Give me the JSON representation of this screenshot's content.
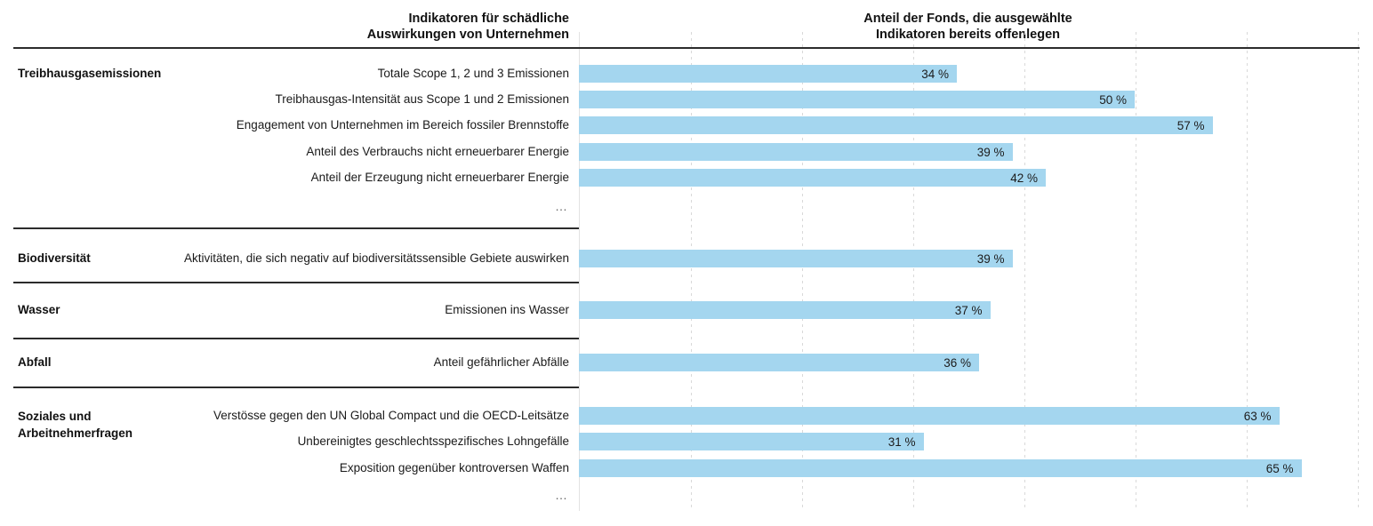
{
  "header": {
    "left_title_line1": "Indikatoren für schädliche",
    "left_title_line2": "Auswirkungen von Unternehmen",
    "right_title_line1": "Anteil der Fonds, die ausgewählte",
    "right_title_line2": "Indikatoren bereits offenlegen"
  },
  "colors": {
    "bar": "#a4d6ef",
    "rule": "#2b2b2b",
    "grid": "#d9d9d9",
    "text": "#1a1a1a",
    "muted": "#666666"
  },
  "chart_data": {
    "type": "bar",
    "orientation": "horizontal",
    "unit": "%",
    "xlim": [
      0,
      70
    ],
    "gridline_step": 10,
    "grid": true,
    "ellipsis_label": "…",
    "sections": [
      {
        "category": "Treibhausgasemissionen",
        "truncated": true,
        "rows": [
          {
            "label": "Totale Scope 1, 2 und 3 Emissionen",
            "value": 34,
            "value_label": "34 %"
          },
          {
            "label": "Treibhausgas-Intensität aus Scope 1 und 2 Emissionen",
            "value": 50,
            "value_label": "50 %"
          },
          {
            "label": "Engagement von Unternehmen im Bereich fossiler Brennstoffe",
            "value": 57,
            "value_label": "57 %"
          },
          {
            "label": "Anteil des Verbrauchs nicht erneuerbarer Energie",
            "value": 39,
            "value_label": "39 %"
          },
          {
            "label": "Anteil der Erzeugung nicht erneuerbarer Energie",
            "value": 42,
            "value_label": "42 %"
          }
        ]
      },
      {
        "category": "Biodiversität",
        "truncated": false,
        "rows": [
          {
            "label": "Aktivitäten, die sich negativ auf biodiversitätssensible Gebiete auswirken",
            "value": 39,
            "value_label": "39 %"
          }
        ]
      },
      {
        "category": "Wasser",
        "truncated": false,
        "rows": [
          {
            "label": "Emissionen ins Wasser",
            "value": 37,
            "value_label": "37 %"
          }
        ]
      },
      {
        "category": "Abfall",
        "truncated": false,
        "rows": [
          {
            "label": "Anteil gefährlicher Abfälle",
            "value": 36,
            "value_label": "36 %"
          }
        ]
      },
      {
        "category": "Soziales und Arbeitnehmerfragen",
        "truncated": true,
        "rows": [
          {
            "label": "Verstösse gegen den UN Global Compact und die OECD-Leitsätze",
            "value": 63,
            "value_label": "63 %"
          },
          {
            "label": "Unbereinigtes geschlechtsspezifisches Lohngefälle",
            "value": 31,
            "value_label": "31 %"
          },
          {
            "label": "Exposition gegenüber kontroversen Waffen",
            "value": 65,
            "value_label": "65 %"
          }
        ]
      }
    ]
  }
}
